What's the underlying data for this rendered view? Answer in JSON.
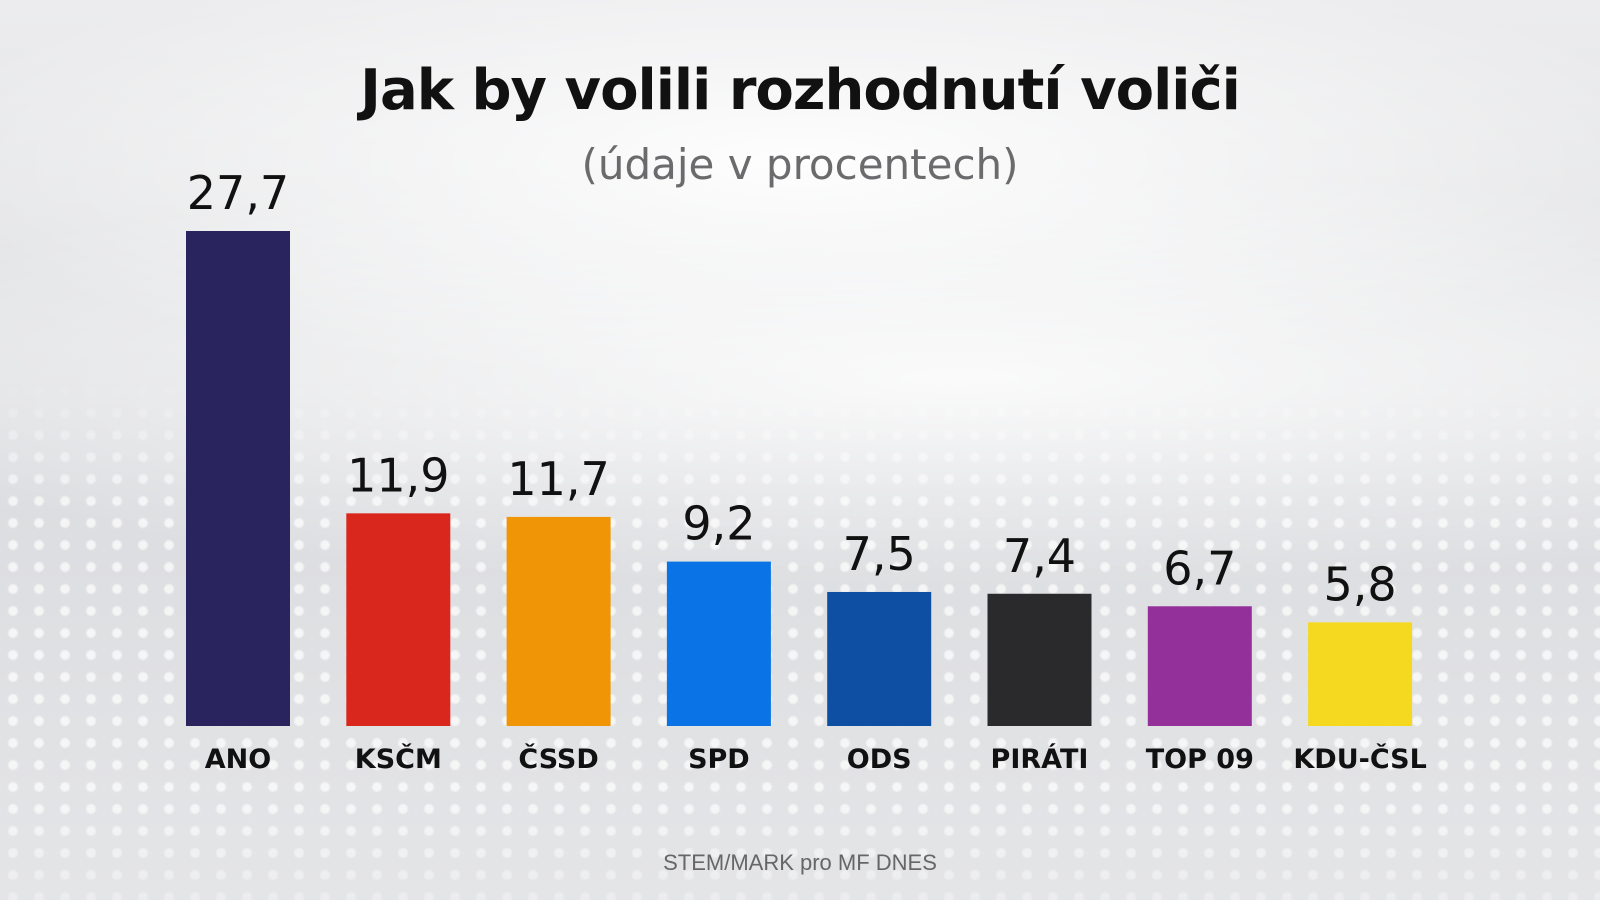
{
  "header": {
    "title": "Jak by volili rozhodnutí voliči",
    "subtitle": "(údaje v procentech)"
  },
  "footer": {
    "source": "STEM/MARK pro MF DNES"
  },
  "chart_data": {
    "type": "bar",
    "title": "Jak by volili rozhodnutí voliči",
    "subtitle": "(údaje v procentech)",
    "xlabel": "",
    "ylabel": "",
    "ylim": [
      0,
      27.7
    ],
    "grid": false,
    "categories": [
      "ANO",
      "KSČM",
      "ČSSD",
      "SPD",
      "ODS",
      "PIRÁTI",
      "TOP 09",
      "KDU-ČSL"
    ],
    "values": [
      27.7,
      11.9,
      11.7,
      9.2,
      7.5,
      7.4,
      6.7,
      5.8
    ],
    "value_labels": [
      "27,7",
      "11,9",
      "11,7",
      "9,2",
      "7,5",
      "7,4",
      "6,7",
      "5,8"
    ],
    "colors": [
      "#2a245e",
      "#d9271d",
      "#f09505",
      "#0a73e6",
      "#0e4fa3",
      "#2a2a2c",
      "#93309a",
      "#f5d820"
    ]
  }
}
